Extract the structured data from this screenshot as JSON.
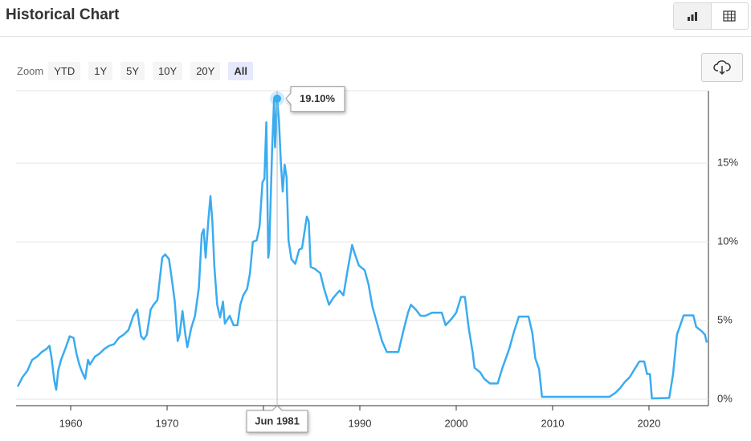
{
  "header": {
    "title": "Historical Chart"
  },
  "zoom": {
    "label": "Zoom",
    "options": [
      "YTD",
      "1Y",
      "5Y",
      "10Y",
      "20Y",
      "All"
    ],
    "selected": "All"
  },
  "chart_data": {
    "type": "line",
    "color": "#3aacf0",
    "x": [
      1954.5,
      1955,
      1955.5,
      1956,
      1956.5,
      1957,
      1957.5,
      1957.8,
      1958.0,
      1958.3,
      1958.5,
      1958.7,
      1959,
      1959.5,
      1959.9,
      1960.3,
      1960.6,
      1960.9,
      1961.2,
      1961.5,
      1961.8,
      1962,
      1962.5,
      1963,
      1963.5,
      1964,
      1964.5,
      1965,
      1965.5,
      1966,
      1966.5,
      1966.9,
      1967.3,
      1967.6,
      1967.9,
      1968.3,
      1968.6,
      1969,
      1969.5,
      1969.8,
      1970.2,
      1970.5,
      1970.8,
      1971.1,
      1971.3,
      1971.6,
      1971.9,
      1972.1,
      1972.5,
      1972.9,
      1973.3,
      1973.6,
      1973.8,
      1974.0,
      1974.3,
      1974.5,
      1974.7,
      1974.9,
      1975.2,
      1975.5,
      1975.8,
      1976,
      1976.5,
      1976.9,
      1977.3,
      1977.6,
      1977.9,
      1978.3,
      1978.6,
      1978.9,
      1979.3,
      1979.6,
      1979.9,
      1980.1,
      1980.3,
      1980.5,
      1980.6,
      1980.9,
      1981.1,
      1981.2,
      1981.42,
      1981.6,
      1981.8,
      1982.0,
      1982.2,
      1982.4,
      1982.6,
      1982.9,
      1983.3,
      1983.7,
      1984.0,
      1984.5,
      1984.7,
      1984.9,
      1985.3,
      1985.9,
      1986.3,
      1986.8,
      1987.2,
      1987.6,
      1987.9,
      1988.3,
      1988.7,
      1989.2,
      1989.5,
      1989.9,
      1990.5,
      1990.9,
      1991.3,
      1991.8,
      1992.3,
      1992.8,
      1993.5,
      1994.0,
      1994.5,
      1995.0,
      1995.3,
      1995.8,
      1996.3,
      1996.8,
      1997.5,
      1998.5,
      1998.9,
      1999.5,
      2000.0,
      2000.5,
      2000.9,
      2001.3,
      2001.7,
      2001.9,
      2002.5,
      2002.9,
      2003.5,
      2004.3,
      2004.8,
      2005.5,
      2006.0,
      2006.5,
      2007.5,
      2007.9,
      2008.2,
      2008.6,
      2008.9,
      2009.5,
      2012,
      2015.9,
      2016.5,
      2017.0,
      2017.5,
      2018.0,
      2018.5,
      2019.0,
      2019.5,
      2019.8,
      2020.1,
      2020.3,
      2022.1,
      2022.5,
      2022.9,
      2023.3,
      2023.6,
      2024.6,
      2024.9,
      2025.5,
      2025.8,
      2026.0
    ],
    "values": [
      0.8,
      1.4,
      1.8,
      2.5,
      2.7,
      3.0,
      3.2,
      3.4,
      2.7,
      1.2,
      0.6,
      1.8,
      2.5,
      3.3,
      4.0,
      3.9,
      2.9,
      2.2,
      1.7,
      1.3,
      2.5,
      2.2,
      2.7,
      2.9,
      3.2,
      3.4,
      3.5,
      3.9,
      4.1,
      4.4,
      5.3,
      5.7,
      4.0,
      3.8,
      4.1,
      5.7,
      6.0,
      6.3,
      9.0,
      9.2,
      8.9,
      7.6,
      6.2,
      3.7,
      4.1,
      5.6,
      4.1,
      3.3,
      4.5,
      5.3,
      7.1,
      10.5,
      10.8,
      9.0,
      11.5,
      12.9,
      11.3,
      8.5,
      6.0,
      5.2,
      6.2,
      4.8,
      5.3,
      4.7,
      4.7,
      6.0,
      6.6,
      7.0,
      8.0,
      10.0,
      10.1,
      11.0,
      13.8,
      14.0,
      17.6,
      9.0,
      9.5,
      15.9,
      19.0,
      16.0,
      19.1,
      17.8,
      15.1,
      13.2,
      14.9,
      14.1,
      10.1,
      8.9,
      8.6,
      9.5,
      9.6,
      11.6,
      11.3,
      8.4,
      8.3,
      8.0,
      7.0,
      6.0,
      6.4,
      6.7,
      6.9,
      6.6,
      8.1,
      9.8,
      9.2,
      8.5,
      8.2,
      7.3,
      5.9,
      4.8,
      3.7,
      3.0,
      3.0,
      3.0,
      4.3,
      5.5,
      6.0,
      5.7,
      5.3,
      5.3,
      5.5,
      5.5,
      4.7,
      5.1,
      5.5,
      6.5,
      6.5,
      4.5,
      3.0,
      2.0,
      1.7,
      1.3,
      1.0,
      1.0,
      2.0,
      3.2,
      4.3,
      5.25,
      5.25,
      4.2,
      2.6,
      1.9,
      0.15,
      0.15,
      0.15,
      0.15,
      0.4,
      0.7,
      1.1,
      1.4,
      1.9,
      2.4,
      2.4,
      1.6,
      1.6,
      0.05,
      0.08,
      1.6,
      4.1,
      4.8,
      5.33,
      5.33,
      4.6,
      4.3,
      4.1,
      3.6
    ],
    "xlim": [
      1954.33,
      2026.17
    ],
    "xticks": [
      1960,
      1970,
      1980,
      1990,
      2000,
      2010,
      2020
    ],
    "ylim": [
      -0.41,
      19.6
    ],
    "yticks": [
      {
        "value": 0,
        "label": "0%"
      },
      {
        "value": 5,
        "label": "5%"
      },
      {
        "value": 10,
        "label": "10%"
      },
      {
        "value": 15,
        "label": "15%"
      }
    ],
    "grid": true,
    "tooltip": {
      "x": 1981.42,
      "y": 19.1,
      "label": "19.10%",
      "x_label": "Jun 1981"
    }
  }
}
